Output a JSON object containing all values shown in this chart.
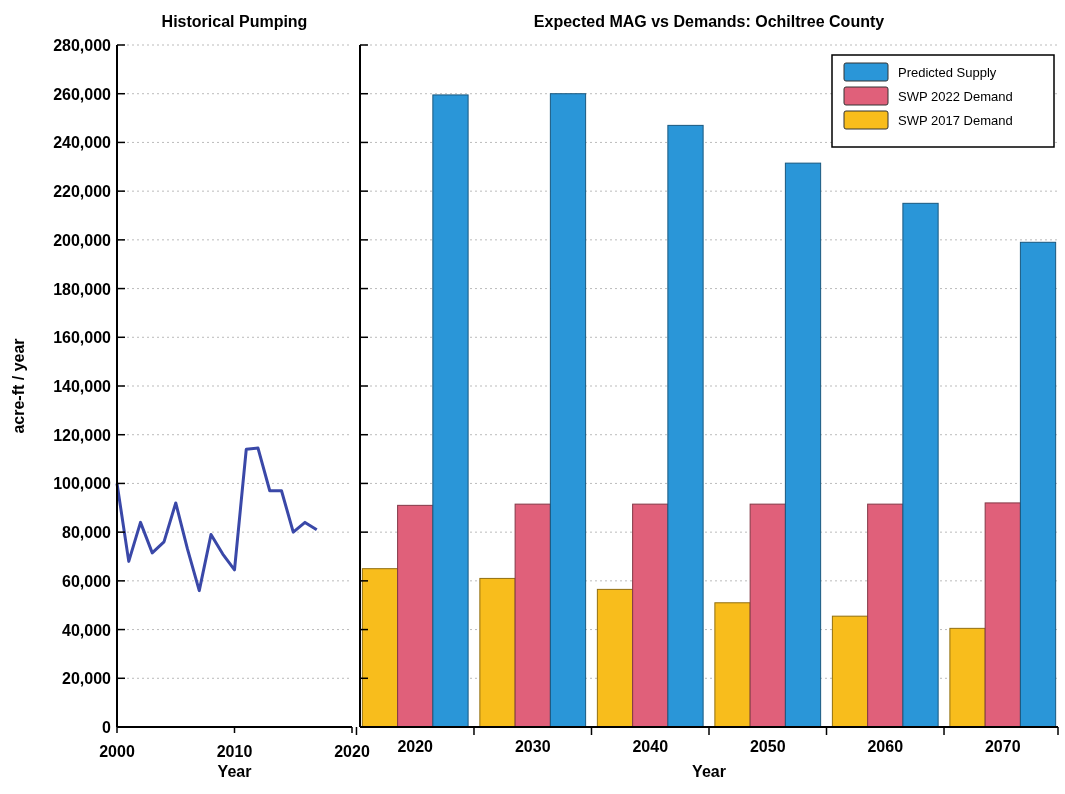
{
  "chart_data": [
    {
      "type": "line",
      "title": "Historical Pumping",
      "xlabel": "Year",
      "ylabel": "acre-ft / year",
      "x": [
        2000,
        2001,
        2002,
        2003,
        2004,
        2005,
        2006,
        2007,
        2008,
        2009,
        2010,
        2011,
        2012,
        2013,
        2014,
        2015,
        2016,
        2017
      ],
      "series": [
        {
          "color": "#3a48a8",
          "values": [
            100000,
            68000,
            84000,
            71500,
            76000,
            92000,
            73000,
            56000,
            79000,
            71000,
            64500,
            114000,
            114500,
            97000,
            97000,
            80000,
            84000,
            81000
          ]
        }
      ],
      "xlim": [
        2000,
        2020
      ],
      "xticks": [
        2000,
        2010,
        2020
      ],
      "ylim": [
        0,
        280000
      ],
      "yticks": [
        0,
        {
          "value": 20000,
          "label": "20,000"
        },
        {
          "value": 40000,
          "label": "40,000"
        },
        {
          "value": 60000,
          "label": "60,000"
        },
        {
          "value": 80000,
          "label": "80,000"
        },
        {
          "value": 100000,
          "label": "100,000"
        },
        {
          "value": 120000,
          "label": "120,000"
        },
        {
          "value": 140000,
          "label": "140,000"
        },
        {
          "value": 160000,
          "label": "160,000"
        },
        {
          "value": 180000,
          "label": "180,000"
        },
        {
          "value": 200000,
          "label": "200,000"
        },
        {
          "value": 220000,
          "label": "220,000"
        },
        {
          "value": 240000,
          "label": "240,000"
        },
        {
          "value": 260000,
          "label": "260,000"
        },
        {
          "value": 280000,
          "label": "280,000"
        }
      ],
      "grid": "y",
      "marker": "none",
      "line_style": "solid"
    },
    {
      "type": "bar",
      "title": "Expected MAG vs Demands:  Ochiltree County",
      "xlabel": "Year",
      "categories": [
        "2020",
        "2030",
        "2040",
        "2050",
        "2060",
        "2070"
      ],
      "series": [
        {
          "name": "SWP 2017 Demand",
          "color": "#f8bd1c",
          "values": [
            65000,
            61000,
            56500,
            51000,
            45500,
            40500
          ]
        },
        {
          "name": "SWP 2022 Demand",
          "color": "#e0607a",
          "values": [
            91000,
            91500,
            91500,
            91500,
            91500,
            92000
          ]
        },
        {
          "name": "Predicted Supply",
          "color": "#2a96d8",
          "values": [
            259500,
            260000,
            247000,
            231500,
            215000,
            199000
          ]
        }
      ],
      "ylim": [
        0,
        280000
      ],
      "yticks": [
        0,
        20000,
        40000,
        60000,
        80000,
        100000,
        120000,
        140000,
        160000,
        180000,
        200000,
        220000,
        240000,
        260000,
        280000
      ],
      "tick_labels": "x",
      "grid": "y",
      "legend": "top right"
    }
  ]
}
